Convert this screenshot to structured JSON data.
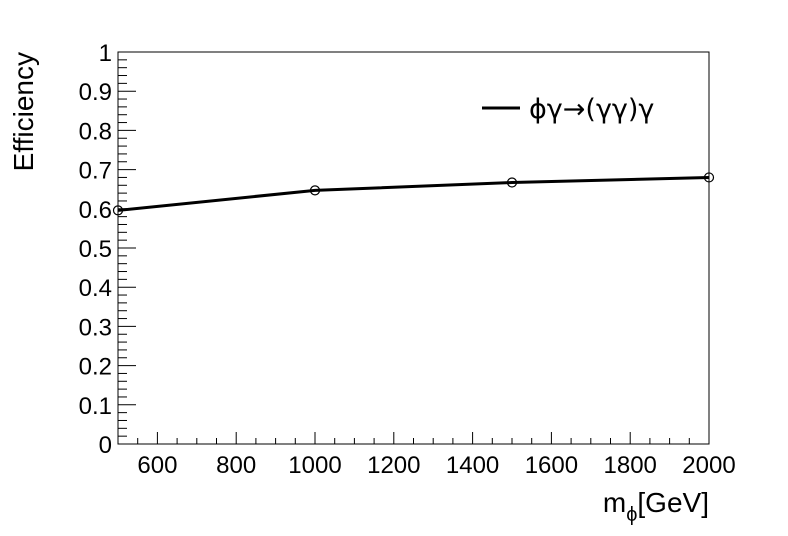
{
  "chart_data": {
    "type": "line",
    "title": "",
    "xlabel": "m_ϕ[GeV]",
    "xlabel_main": "m",
    "xlabel_sub": "ϕ",
    "xlabel_rest": "[GeV]",
    "ylabel": "Efficiency",
    "xlim": [
      500,
      2000
    ],
    "ylim": [
      0,
      1
    ],
    "xticks": [
      600,
      800,
      1000,
      1200,
      1400,
      1600,
      1800,
      2000
    ],
    "yticks": [
      0,
      0.1,
      0.2,
      0.3,
      0.4,
      0.5,
      0.6,
      0.7,
      0.8,
      0.9,
      1
    ],
    "ytick_labels": [
      "0",
      "0.1",
      "0.2",
      "0.3",
      "0.4",
      "0.5",
      "0.6",
      "0.7",
      "0.8",
      "0.9",
      "1"
    ],
    "grid": false,
    "legend_position": "top-right",
    "series": [
      {
        "name": "ϕγ→(γγ)γ",
        "x": [
          500,
          1000,
          1500,
          2000
        ],
        "values": [
          0.596,
          0.647,
          0.667,
          0.68
        ],
        "color": "#000000",
        "marker": "open-circle"
      }
    ]
  }
}
